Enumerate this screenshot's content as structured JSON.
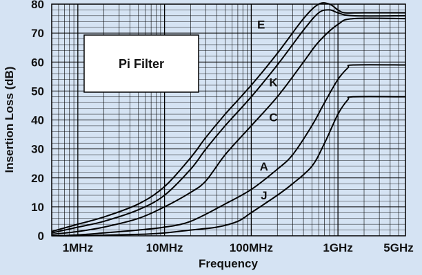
{
  "chart_data": {
    "type": "line",
    "title": "",
    "xlabel": "Frequency",
    "ylabel": "Insertion Loss (dB)",
    "x_scale": "log",
    "xlim_hz": [
      500000,
      6000000000
    ],
    "ylim": [
      0,
      80
    ],
    "grid": true,
    "x_ticks": [
      {
        "value_hz": 1000000,
        "label": "1MHz"
      },
      {
        "value_hz": 10000000,
        "label": "10MHz"
      },
      {
        "value_hz": 100000000,
        "label": "100MHz"
      },
      {
        "value_hz": 1000000000,
        "label": "1GHz"
      },
      {
        "value_hz": 5000000000,
        "label": "5GHz"
      }
    ],
    "y_ticks": [
      0,
      10,
      20,
      30,
      40,
      50,
      60,
      70,
      80
    ],
    "legend_box": {
      "text": "Pi Filter",
      "placement": "top-left"
    },
    "series": [
      {
        "name": "E",
        "label_at": {
          "x_hz": 130000000,
          "y": 73
        },
        "points": [
          [
            500000,
            1.5
          ],
          [
            1000000,
            4
          ],
          [
            2000000,
            6.5
          ],
          [
            5000000,
            11
          ],
          [
            10000000,
            17
          ],
          [
            20000000,
            27
          ],
          [
            30000000,
            34
          ],
          [
            50000000,
            42
          ],
          [
            100000000,
            52
          ],
          [
            200000000,
            63
          ],
          [
            400000000,
            75
          ],
          [
            600000000,
            80
          ],
          [
            800000000,
            80
          ],
          [
            1000000000,
            78
          ],
          [
            1200000000,
            77
          ],
          [
            2000000000,
            77
          ],
          [
            6000000000,
            77
          ]
        ]
      },
      {
        "name": "K",
        "label_at": {
          "x_hz": 180000000,
          "y": 53
        },
        "points": [
          [
            500000,
            1
          ],
          [
            1000000,
            3
          ],
          [
            2000000,
            5
          ],
          [
            5000000,
            9
          ],
          [
            10000000,
            14
          ],
          [
            20000000,
            23
          ],
          [
            30000000,
            30
          ],
          [
            50000000,
            38
          ],
          [
            100000000,
            48
          ],
          [
            200000000,
            59
          ],
          [
            400000000,
            71
          ],
          [
            600000000,
            77
          ],
          [
            800000000,
            78
          ],
          [
            1000000000,
            77
          ],
          [
            1500000000,
            76
          ],
          [
            6000000000,
            76
          ]
        ]
      },
      {
        "name": "C",
        "label_at": {
          "x_hz": 180000000,
          "y": 41
        },
        "points": [
          [
            500000,
            0.5
          ],
          [
            1000000,
            1.5
          ],
          [
            2000000,
            3
          ],
          [
            5000000,
            6
          ],
          [
            10000000,
            10
          ],
          [
            20000000,
            15
          ],
          [
            30000000,
            19
          ],
          [
            50000000,
            28
          ],
          [
            100000000,
            38
          ],
          [
            200000000,
            48
          ],
          [
            400000000,
            60
          ],
          [
            600000000,
            67
          ],
          [
            1000000000,
            73
          ],
          [
            1500000000,
            75
          ],
          [
            6000000000,
            75
          ]
        ]
      },
      {
        "name": "A",
        "label_at": {
          "x_hz": 140000000,
          "y": 24
        },
        "points": [
          [
            500000,
            0
          ],
          [
            1000000,
            0.3
          ],
          [
            2000000,
            1
          ],
          [
            5000000,
            2
          ],
          [
            10000000,
            3
          ],
          [
            20000000,
            5
          ],
          [
            50000000,
            11
          ],
          [
            100000000,
            16
          ],
          [
            200000000,
            23
          ],
          [
            300000000,
            28
          ],
          [
            500000000,
            38
          ],
          [
            700000000,
            46
          ],
          [
            1000000000,
            54
          ],
          [
            1300000000,
            58
          ],
          [
            1500000000,
            59
          ],
          [
            6000000000,
            59
          ]
        ]
      },
      {
        "name": "J",
        "label_at": {
          "x_hz": 140000000,
          "y": 14
        },
        "points": [
          [
            500000,
            0
          ],
          [
            1000000,
            0
          ],
          [
            5000000,
            0.5
          ],
          [
            10000000,
            1
          ],
          [
            20000000,
            2
          ],
          [
            40000000,
            3
          ],
          [
            70000000,
            5
          ],
          [
            100000000,
            8
          ],
          [
            200000000,
            14
          ],
          [
            300000000,
            18
          ],
          [
            500000000,
            24
          ],
          [
            700000000,
            32
          ],
          [
            1000000000,
            42
          ],
          [
            1300000000,
            47
          ],
          [
            1500000000,
            48
          ],
          [
            6000000000,
            48
          ]
        ]
      }
    ]
  }
}
